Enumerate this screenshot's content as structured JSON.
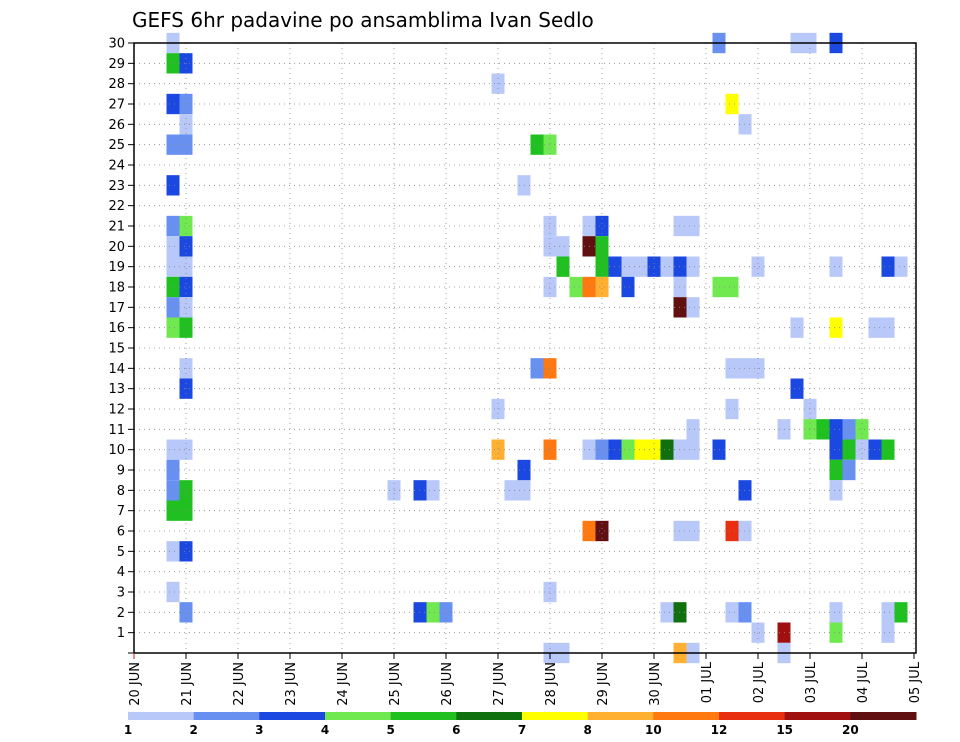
{
  "chart_data": {
    "type": "heatmap",
    "title": "GEFS 6hr padavine po ansamblima Ivan Sedlo",
    "xlabel": "",
    "ylabel": "",
    "y_range": [
      0,
      30
    ],
    "x_range_days": [
      0,
      15
    ],
    "y_tick_labels": [
      "1",
      "2",
      "3",
      "4",
      "5",
      "6",
      "7",
      "8",
      "9",
      "10",
      "11",
      "12",
      "13",
      "14",
      "15",
      "16",
      "17",
      "18",
      "19",
      "20",
      "21",
      "22",
      "23",
      "24",
      "25",
      "26",
      "27",
      "28",
      "29",
      "30"
    ],
    "x_tick_labels": [
      "20 JUN",
      "21 JUN",
      "22 JUN",
      "23 JUN",
      "24 JUN",
      "25 JUN",
      "26 JUN",
      "27 JUN",
      "28 JUN",
      "29 JUN",
      "30 JUN",
      "01 JUL",
      "02 JUL",
      "03 JUL",
      "04 JUL",
      "05 JUL"
    ],
    "grid": true,
    "colorbar": {
      "labels": [
        "1",
        "2",
        "3",
        "4",
        "5",
        "6",
        "7",
        "8",
        "10",
        "12",
        "15",
        "20"
      ],
      "colors": [
        "#b8c8f8",
        "#6890f0",
        "#1a48e0",
        "#70e850",
        "#20c020",
        "#107010",
        "#ffff00",
        "#ffb030",
        "#ff7810",
        "#e83010",
        "#a01010",
        "#601010"
      ]
    },
    "cells": [
      [
        0.75,
        30,
        0
      ],
      [
        0.75,
        29,
        4
      ],
      [
        1,
        29,
        2
      ],
      [
        0.75,
        27,
        2
      ],
      [
        1,
        27,
        1
      ],
      [
        1,
        26,
        0
      ],
      [
        0.75,
        25,
        1
      ],
      [
        1,
        25,
        1
      ],
      [
        0.75,
        23,
        2
      ],
      [
        0.75,
        21,
        1
      ],
      [
        1,
        21,
        3
      ],
      [
        0.75,
        20,
        0
      ],
      [
        1,
        20,
        2
      ],
      [
        0.75,
        19,
        0
      ],
      [
        1,
        19,
        0
      ],
      [
        0.75,
        18,
        4
      ],
      [
        1,
        18,
        2
      ],
      [
        0.75,
        17,
        1
      ],
      [
        1,
        17,
        0
      ],
      [
        0.75,
        16,
        3
      ],
      [
        1,
        16,
        4
      ],
      [
        1,
        14,
        0
      ],
      [
        1,
        13,
        2
      ],
      [
        0.75,
        10,
        0
      ],
      [
        1,
        10,
        0
      ],
      [
        0.75,
        9,
        1
      ],
      [
        0.75,
        8,
        1
      ],
      [
        1,
        8,
        4
      ],
      [
        0.75,
        7,
        4
      ],
      [
        1,
        7,
        4
      ],
      [
        0.75,
        5,
        0
      ],
      [
        1,
        5,
        2
      ],
      [
        0.75,
        3,
        0
      ],
      [
        1,
        2,
        1
      ],
      [
        5,
        8,
        0
      ],
      [
        5.5,
        8,
        2
      ],
      [
        5.75,
        8,
        0
      ],
      [
        5.5,
        2,
        2
      ],
      [
        5.75,
        2,
        3
      ],
      [
        6,
        2,
        1
      ],
      [
        7,
        28,
        0
      ],
      [
        7,
        12,
        0
      ],
      [
        7,
        10,
        7
      ],
      [
        7.25,
        8,
        0
      ],
      [
        7.5,
        8,
        0
      ],
      [
        7.5,
        9,
        2
      ],
      [
        7.5,
        23,
        0
      ],
      [
        7.75,
        25,
        4
      ],
      [
        8,
        25,
        3
      ],
      [
        7.75,
        14,
        1
      ],
      [
        8,
        14,
        8
      ],
      [
        8,
        21,
        0
      ],
      [
        8,
        20,
        0
      ],
      [
        8.25,
        20,
        0
      ],
      [
        8,
        18,
        0
      ],
      [
        8,
        10,
        8
      ],
      [
        8,
        3,
        0
      ],
      [
        8,
        0,
        0
      ],
      [
        8.25,
        0,
        0
      ],
      [
        8.25,
        19,
        4
      ],
      [
        8.5,
        18,
        3
      ],
      [
        8.75,
        18,
        8
      ],
      [
        9,
        18,
        7
      ],
      [
        8.75,
        21,
        0
      ],
      [
        9,
        21,
        2
      ],
      [
        8.75,
        20,
        11
      ],
      [
        9,
        20,
        4
      ],
      [
        9,
        19,
        4
      ],
      [
        8.75,
        10,
        0
      ],
      [
        9,
        10,
        1
      ],
      [
        9.25,
        10,
        2
      ],
      [
        9.5,
        10,
        3
      ],
      [
        9.75,
        10,
        6
      ],
      [
        10,
        10,
        6
      ],
      [
        8.75,
        6,
        8
      ],
      [
        9,
        6,
        11
      ],
      [
        9.25,
        19,
        2
      ],
      [
        9.5,
        19,
        0
      ],
      [
        9.75,
        19,
        0
      ],
      [
        10,
        19,
        2
      ],
      [
        9.5,
        18,
        2
      ],
      [
        10.25,
        19,
        0
      ],
      [
        10.5,
        19,
        2
      ],
      [
        10.75,
        19,
        0
      ],
      [
        10.5,
        18,
        0
      ],
      [
        10.5,
        17,
        11
      ],
      [
        10.75,
        17,
        0
      ],
      [
        10.25,
        10,
        5
      ],
      [
        10.5,
        10,
        0
      ],
      [
        10.75,
        10,
        0
      ],
      [
        10.75,
        11,
        0
      ],
      [
        10.5,
        21,
        0
      ],
      [
        10.75,
        21,
        0
      ],
      [
        10.5,
        6,
        0
      ],
      [
        10.75,
        6,
        0
      ],
      [
        10.25,
        2,
        0
      ],
      [
        10.5,
        2,
        5
      ],
      [
        10.5,
        0,
        7
      ],
      [
        10.75,
        0,
        0
      ],
      [
        11.25,
        18,
        3
      ],
      [
        11.5,
        18,
        3
      ],
      [
        11.25,
        10,
        2
      ],
      [
        11.5,
        27,
        6
      ],
      [
        11.75,
        26,
        0
      ],
      [
        11.5,
        14,
        0
      ],
      [
        11.75,
        14,
        0
      ],
      [
        12,
        14,
        0
      ],
      [
        11.5,
        12,
        0
      ],
      [
        11.5,
        6,
        9
      ],
      [
        11.75,
        6,
        0
      ],
      [
        11.75,
        8,
        2
      ],
      [
        11.5,
        2,
        0
      ],
      [
        11.75,
        2,
        1
      ],
      [
        12,
        1,
        0
      ],
      [
        12,
        19,
        0
      ],
      [
        12.5,
        1,
        10
      ],
      [
        12.5,
        0,
        0
      ],
      [
        12.75,
        30,
        0
      ],
      [
        13,
        30,
        0
      ],
      [
        12.5,
        11,
        0
      ],
      [
        12.75,
        13,
        2
      ],
      [
        12.75,
        16,
        0
      ],
      [
        13,
        12,
        0
      ],
      [
        13,
        11,
        3
      ],
      [
        13.25,
        11,
        4
      ],
      [
        13.5,
        11,
        2
      ],
      [
        13.75,
        11,
        1
      ],
      [
        14,
        11,
        3
      ],
      [
        13.5,
        30,
        2
      ],
      [
        13.5,
        19,
        0
      ],
      [
        13.5,
        16,
        6
      ],
      [
        13.5,
        10,
        2
      ],
      [
        13.75,
        10,
        4
      ],
      [
        14,
        10,
        0
      ],
      [
        14.25,
        10,
        2
      ],
      [
        14.5,
        10,
        4
      ],
      [
        13.5,
        9,
        4
      ],
      [
        13.75,
        9,
        1
      ],
      [
        13.5,
        8,
        0
      ],
      [
        13.5,
        2,
        0
      ],
      [
        13.5,
        1,
        3
      ],
      [
        11.25,
        30,
        1
      ],
      [
        14.5,
        19,
        2
      ],
      [
        14.75,
        19,
        0
      ],
      [
        14.25,
        16,
        0
      ],
      [
        14.5,
        16,
        0
      ],
      [
        14.5,
        2,
        0
      ],
      [
        14.75,
        2,
        4
      ],
      [
        14.5,
        1,
        0
      ]
    ]
  }
}
